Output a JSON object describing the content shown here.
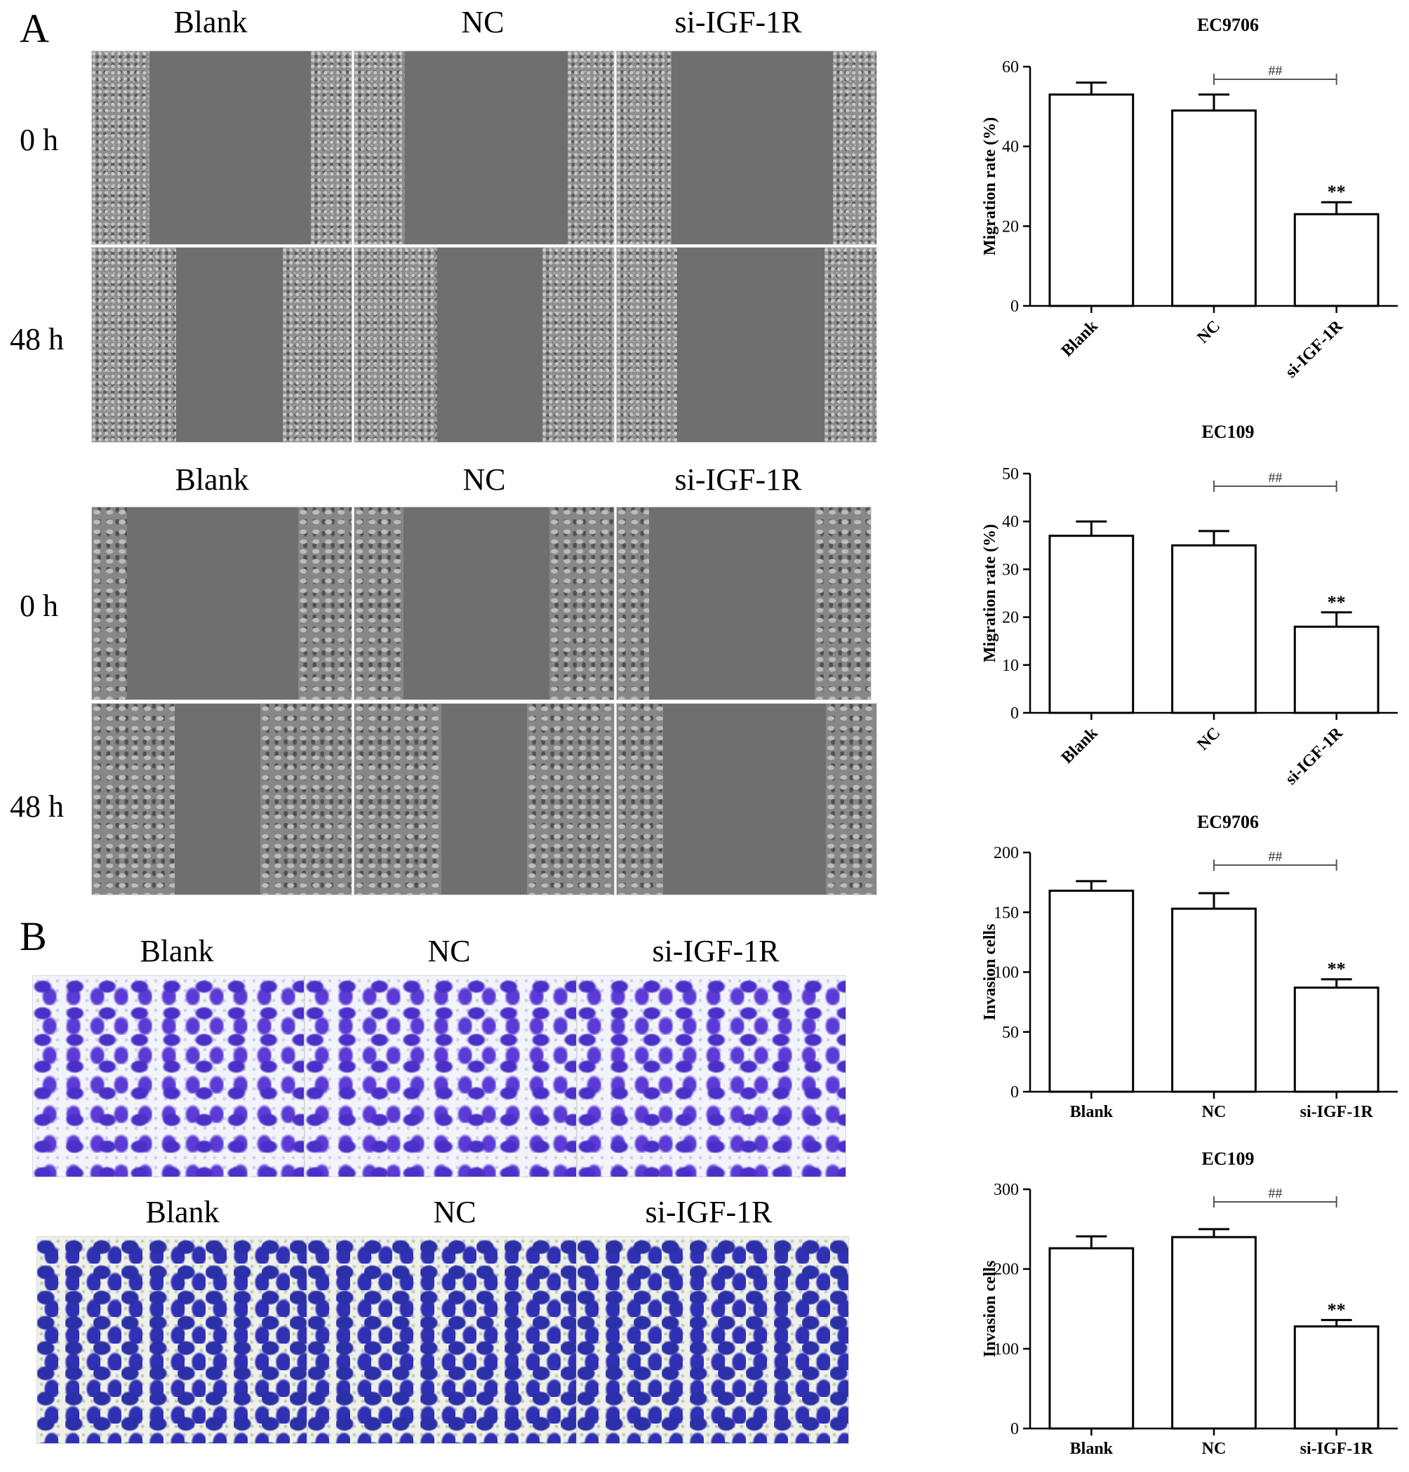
{
  "panelA": {
    "letter": "A",
    "block1": {
      "headers": [
        "Blank",
        "NC",
        "si-IGF-1R"
      ],
      "rows": [
        "0 h",
        "48 h"
      ]
    },
    "block2": {
      "headers": [
        "Blank",
        "NC",
        "si-IGF-1R"
      ],
      "rows": [
        "0 h",
        "48 h"
      ]
    }
  },
  "panelB": {
    "letter": "B",
    "block1": {
      "headers": [
        "Blank",
        "NC",
        "si-IGF-1R"
      ]
    },
    "block2": {
      "headers": [
        "Blank",
        "NC",
        "si-IGF-1R"
      ]
    }
  },
  "chart_data": [
    {
      "type": "bar",
      "title": "EC9706",
      "ylabel": "Migration rate (%)",
      "categories": [
        "Blank",
        "NC",
        "si-IGF-1R"
      ],
      "values": [
        53,
        49,
        23
      ],
      "errors": [
        3,
        4,
        3
      ],
      "ylim": [
        0,
        60
      ],
      "yticks": [
        0,
        20,
        40,
        60
      ],
      "rotated_labels": true,
      "sig_bracket": {
        "from": "NC",
        "to": "si-IGF-1R",
        "label": "##"
      },
      "bar_annotations": [
        "",
        "",
        "**"
      ]
    },
    {
      "type": "bar",
      "title": "EC109",
      "ylabel": "Migration rate (%)",
      "categories": [
        "Blank",
        "NC",
        "si-IGF-1R"
      ],
      "values": [
        37,
        35,
        18
      ],
      "errors": [
        3,
        3,
        3
      ],
      "ylim": [
        0,
        50
      ],
      "yticks": [
        0,
        10,
        20,
        30,
        40,
        50
      ],
      "rotated_labels": true,
      "sig_bracket": {
        "from": "NC",
        "to": "si-IGF-1R",
        "label": "##"
      },
      "bar_annotations": [
        "",
        "",
        "**"
      ]
    },
    {
      "type": "bar",
      "title": "EC9706",
      "ylabel": "Invasion cells",
      "categories": [
        "Blank",
        "NC",
        "si-IGF-1R"
      ],
      "values": [
        168,
        153,
        87
      ],
      "errors": [
        8,
        13,
        7
      ],
      "ylim": [
        0,
        200
      ],
      "yticks": [
        0,
        50,
        100,
        150,
        200
      ],
      "rotated_labels": false,
      "sig_bracket": {
        "from": "NC",
        "to": "si-IGF-1R",
        "label": "##"
      },
      "bar_annotations": [
        "",
        "",
        "**"
      ]
    },
    {
      "type": "bar",
      "title": "EC109",
      "ylabel": "Invasion cells",
      "categories": [
        "Blank",
        "NC",
        "si-IGF-1R"
      ],
      "values": [
        226,
        240,
        128
      ],
      "errors": [
        15,
        10,
        8
      ],
      "ylim": [
        0,
        300
      ],
      "yticks": [
        0,
        100,
        200,
        300
      ],
      "rotated_labels": false,
      "sig_bracket": {
        "from": "NC",
        "to": "si-IGF-1R",
        "label": "##"
      },
      "bar_annotations": [
        "",
        "",
        "**"
      ]
    }
  ]
}
